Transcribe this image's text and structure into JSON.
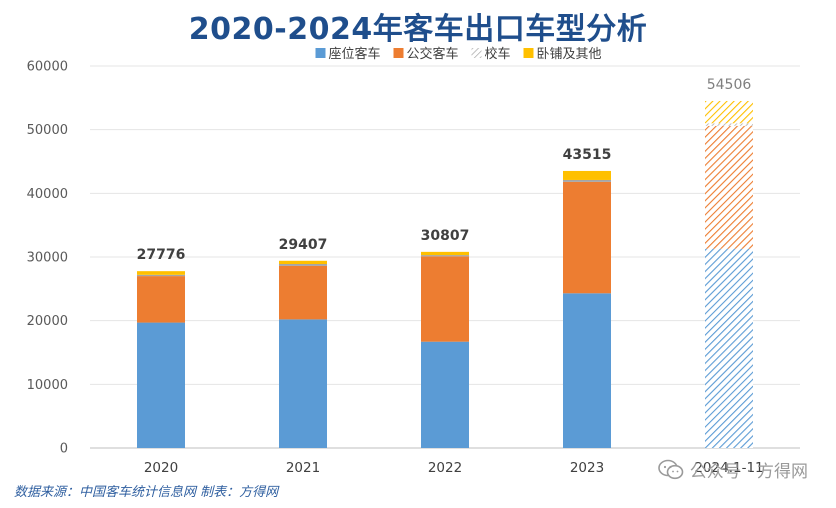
{
  "chart_data": {
    "type": "bar",
    "stacked": true,
    "title": "2020-2024年客车出口车型分析",
    "categories": [
      "2020",
      "2021",
      "2022",
      "2023",
      "2024.1-11"
    ],
    "series": [
      {
        "name": "座位客车",
        "color": "#5b9bd5",
        "values": [
          19700,
          20200,
          16700,
          24300,
          31300
        ]
      },
      {
        "name": "公交客车",
        "color": "#ed7d31",
        "values": [
          7300,
          8400,
          13400,
          17500,
          19300
        ]
      },
      {
        "name": "校车",
        "color": "#a5a5a5",
        "values": [
          200,
          300,
          200,
          300,
          400
        ]
      },
      {
        "name": "卧铺及其他",
        "color": "#ffc000",
        "values": [
          576,
          507,
          507,
          1415,
          3506
        ]
      }
    ],
    "totals": [
      "27776",
      "29407",
      "30807",
      "43515",
      "54506"
    ],
    "hatched_categories": [
      "2024.1-11"
    ],
    "ylim": [
      0,
      60000
    ],
    "yticks": [
      "0",
      "10000",
      "20000",
      "30000",
      "40000",
      "50000",
      "60000"
    ],
    "ytick_values": [
      0,
      10000,
      20000,
      30000,
      40000,
      50000,
      60000
    ],
    "grid": true,
    "legend": "top"
  },
  "footer": {
    "source": "数据来源：中国客车统计信息网  制表：方得网",
    "watermark": "公众号 · 方得网"
  }
}
